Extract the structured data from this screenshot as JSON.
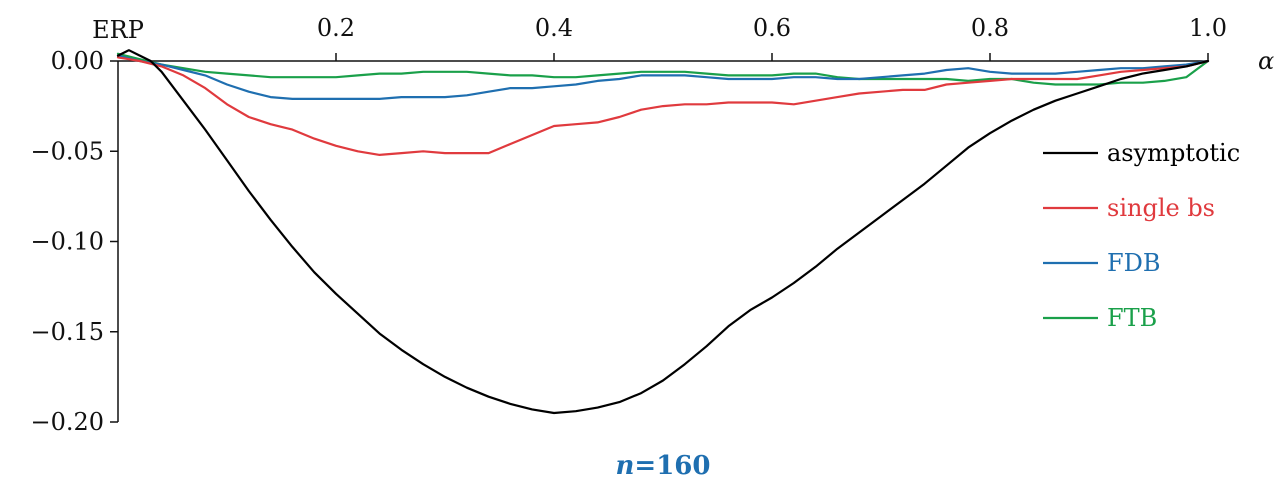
{
  "chart_data": {
    "type": "line",
    "xlabel": "α",
    "ylabel": "",
    "xlim": [
      0,
      1.0
    ],
    "ylim": [
      -0.2,
      0.0
    ],
    "x_origin_label": "ERP",
    "x_ticks": [
      0.2,
      0.4,
      0.6,
      0.8,
      1.0
    ],
    "x_tick_labels": [
      "0.2",
      "0.4",
      "0.6",
      "0.8",
      "1.0"
    ],
    "y_ticks": [
      0.0,
      -0.05,
      -0.1,
      -0.15,
      -0.2
    ],
    "y_tick_labels": [
      "0.00",
      "−0.05",
      "−0.10",
      "−0.15",
      "−0.20"
    ],
    "grid": false,
    "legend_position": "right",
    "caption": "n=160",
    "caption_color": "#1f6fb0",
    "series": [
      {
        "name": "asymptotic",
        "color": "#000000",
        "x": [
          0,
          0.01,
          0.02,
          0.03,
          0.04,
          0.06,
          0.08,
          0.1,
          0.12,
          0.14,
          0.16,
          0.18,
          0.2,
          0.22,
          0.24,
          0.26,
          0.28,
          0.3,
          0.32,
          0.34,
          0.36,
          0.38,
          0.4,
          0.42,
          0.44,
          0.46,
          0.48,
          0.5,
          0.52,
          0.54,
          0.56,
          0.58,
          0.6,
          0.62,
          0.64,
          0.66,
          0.68,
          0.7,
          0.72,
          0.74,
          0.76,
          0.78,
          0.8,
          0.82,
          0.84,
          0.86,
          0.88,
          0.9,
          0.92,
          0.94,
          0.96,
          0.98,
          1.0
        ],
        "y": [
          0.003,
          0.006,
          0.003,
          0.0,
          -0.006,
          -0.022,
          -0.038,
          -0.055,
          -0.072,
          -0.088,
          -0.103,
          -0.117,
          -0.129,
          -0.14,
          -0.151,
          -0.16,
          -0.168,
          -0.175,
          -0.181,
          -0.186,
          -0.19,
          -0.193,
          -0.195,
          -0.194,
          -0.192,
          -0.189,
          -0.184,
          -0.177,
          -0.168,
          -0.158,
          -0.147,
          -0.138,
          -0.131,
          -0.123,
          -0.114,
          -0.104,
          -0.095,
          -0.086,
          -0.077,
          -0.068,
          -0.058,
          -0.048,
          -0.04,
          -0.033,
          -0.027,
          -0.022,
          -0.018,
          -0.014,
          -0.01,
          -0.007,
          -0.005,
          -0.003,
          0.0
        ]
      },
      {
        "name": "single bs",
        "color": "#e03a3e",
        "x": [
          0,
          0.02,
          0.04,
          0.06,
          0.08,
          0.1,
          0.12,
          0.14,
          0.16,
          0.18,
          0.2,
          0.22,
          0.24,
          0.26,
          0.28,
          0.3,
          0.32,
          0.34,
          0.36,
          0.38,
          0.4,
          0.42,
          0.44,
          0.46,
          0.48,
          0.5,
          0.52,
          0.54,
          0.56,
          0.58,
          0.6,
          0.62,
          0.64,
          0.66,
          0.68,
          0.7,
          0.72,
          0.74,
          0.76,
          0.78,
          0.8,
          0.82,
          0.84,
          0.86,
          0.88,
          0.9,
          0.92,
          0.94,
          0.96,
          0.98,
          1.0
        ],
        "y": [
          0.002,
          0.0,
          -0.003,
          -0.008,
          -0.015,
          -0.024,
          -0.031,
          -0.035,
          -0.038,
          -0.043,
          -0.047,
          -0.05,
          -0.052,
          -0.051,
          -0.05,
          -0.051,
          -0.051,
          -0.051,
          -0.046,
          -0.041,
          -0.036,
          -0.035,
          -0.034,
          -0.031,
          -0.027,
          -0.025,
          -0.024,
          -0.024,
          -0.023,
          -0.023,
          -0.023,
          -0.024,
          -0.022,
          -0.02,
          -0.018,
          -0.017,
          -0.016,
          -0.016,
          -0.013,
          -0.012,
          -0.011,
          -0.01,
          -0.01,
          -0.01,
          -0.01,
          -0.008,
          -0.006,
          -0.005,
          -0.004,
          -0.003,
          0.0
        ]
      },
      {
        "name": "FDB",
        "color": "#1f6fb0",
        "x": [
          0,
          0.02,
          0.04,
          0.06,
          0.08,
          0.1,
          0.12,
          0.14,
          0.16,
          0.18,
          0.2,
          0.22,
          0.24,
          0.26,
          0.28,
          0.3,
          0.32,
          0.34,
          0.36,
          0.38,
          0.4,
          0.42,
          0.44,
          0.46,
          0.48,
          0.5,
          0.52,
          0.54,
          0.56,
          0.58,
          0.6,
          0.62,
          0.64,
          0.66,
          0.68,
          0.7,
          0.72,
          0.74,
          0.76,
          0.78,
          0.8,
          0.82,
          0.84,
          0.86,
          0.88,
          0.9,
          0.92,
          0.94,
          0.96,
          0.98,
          1.0
        ],
        "y": [
          0.003,
          0.0,
          -0.002,
          -0.005,
          -0.008,
          -0.013,
          -0.017,
          -0.02,
          -0.021,
          -0.021,
          -0.021,
          -0.021,
          -0.021,
          -0.02,
          -0.02,
          -0.02,
          -0.019,
          -0.017,
          -0.015,
          -0.015,
          -0.014,
          -0.013,
          -0.011,
          -0.01,
          -0.008,
          -0.008,
          -0.008,
          -0.009,
          -0.01,
          -0.01,
          -0.01,
          -0.009,
          -0.009,
          -0.01,
          -0.01,
          -0.009,
          -0.008,
          -0.007,
          -0.005,
          -0.004,
          -0.006,
          -0.007,
          -0.007,
          -0.007,
          -0.006,
          -0.005,
          -0.004,
          -0.004,
          -0.003,
          -0.002,
          0.0
        ]
      },
      {
        "name": "FTB",
        "color": "#1aa04a",
        "x": [
          0,
          0.02,
          0.04,
          0.06,
          0.08,
          0.1,
          0.12,
          0.14,
          0.16,
          0.18,
          0.2,
          0.22,
          0.24,
          0.26,
          0.28,
          0.3,
          0.32,
          0.34,
          0.36,
          0.38,
          0.4,
          0.42,
          0.44,
          0.46,
          0.48,
          0.5,
          0.52,
          0.54,
          0.56,
          0.58,
          0.6,
          0.62,
          0.64,
          0.66,
          0.68,
          0.7,
          0.72,
          0.74,
          0.76,
          0.78,
          0.8,
          0.82,
          0.84,
          0.86,
          0.88,
          0.9,
          0.92,
          0.94,
          0.96,
          0.98,
          1.0
        ],
        "y": [
          0.004,
          0.001,
          -0.002,
          -0.004,
          -0.006,
          -0.007,
          -0.008,
          -0.009,
          -0.009,
          -0.009,
          -0.009,
          -0.008,
          -0.007,
          -0.007,
          -0.006,
          -0.006,
          -0.006,
          -0.007,
          -0.008,
          -0.008,
          -0.009,
          -0.009,
          -0.008,
          -0.007,
          -0.006,
          -0.006,
          -0.006,
          -0.007,
          -0.008,
          -0.008,
          -0.008,
          -0.007,
          -0.007,
          -0.009,
          -0.01,
          -0.01,
          -0.01,
          -0.01,
          -0.01,
          -0.011,
          -0.01,
          -0.01,
          -0.012,
          -0.013,
          -0.013,
          -0.013,
          -0.012,
          -0.012,
          -0.011,
          -0.009,
          0.0
        ]
      }
    ]
  }
}
